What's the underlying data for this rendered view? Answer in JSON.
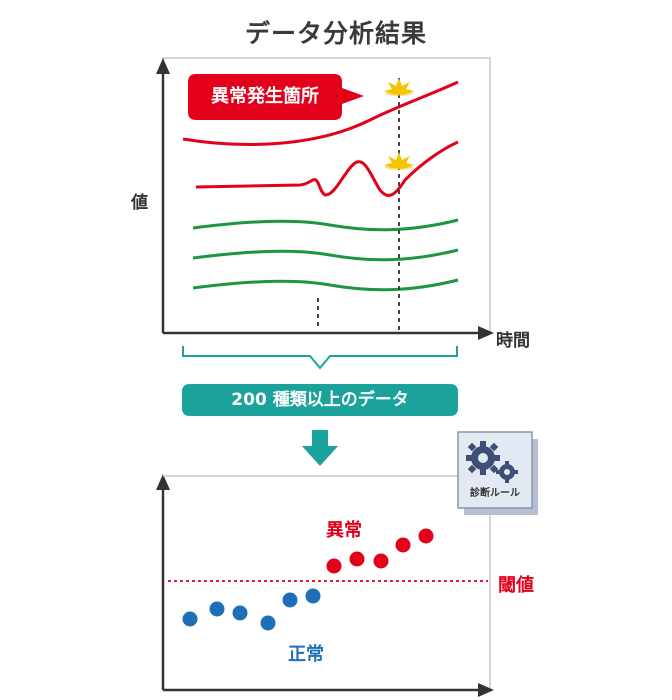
{
  "title": "データ分析結果",
  "top_chart": {
    "callout": "異常発生箇所",
    "y_axis_label": "値",
    "x_axis_label": "時間",
    "colors": {
      "abnormal": "#e2001a",
      "normal": "#1e9641",
      "axis": "#333333",
      "marker": "#f5c400"
    }
  },
  "data_band": {
    "label": "200 種類以上のデータ",
    "color": "#1ba39b"
  },
  "rule_box": {
    "icon": "gear-icon",
    "label": "診断ルール"
  },
  "bottom_chart": {
    "abnormal_label": "異常",
    "threshold_label": "閾値",
    "normal_label": "正常",
    "colors": {
      "abnormal": "#e2001a",
      "normal": "#1f6fb8",
      "threshold": "#e2001a"
    }
  }
}
